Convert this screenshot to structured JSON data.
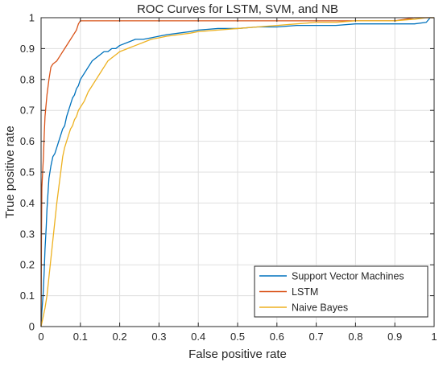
{
  "chart_data": {
    "type": "line",
    "title": "ROC Curves for LSTM, SVM, and NB",
    "xlabel": "False positive rate",
    "ylabel": "True positive rate",
    "xlim": [
      0,
      1
    ],
    "ylim": [
      0,
      1
    ],
    "xticks": [
      0,
      0.1,
      0.2,
      0.3,
      0.4,
      0.5,
      0.6,
      0.7,
      0.8,
      0.9,
      1
    ],
    "yticks": [
      0,
      0.1,
      0.2,
      0.3,
      0.4,
      0.5,
      0.6,
      0.7,
      0.8,
      0.9,
      1
    ],
    "xtick_labels": [
      "0",
      "0.1",
      "0.2",
      "0.3",
      "0.4",
      "0.5",
      "0.6",
      "0.7",
      "0.8",
      "0.9",
      "1"
    ],
    "ytick_labels": [
      "0",
      "0.1",
      "0.2",
      "0.3",
      "0.4",
      "0.5",
      "0.6",
      "0.7",
      "0.8",
      "0.9",
      "1"
    ],
    "grid": true,
    "legend_position": "bottom-right",
    "series": [
      {
        "name": "Support Vector Machines",
        "color": "#0072BD",
        "x": [
          0,
          0.002,
          0.005,
          0.008,
          0.01,
          0.013,
          0.015,
          0.018,
          0.02,
          0.025,
          0.03,
          0.035,
          0.04,
          0.045,
          0.05,
          0.055,
          0.06,
          0.065,
          0.07,
          0.075,
          0.08,
          0.085,
          0.09,
          0.095,
          0.1,
          0.11,
          0.12,
          0.13,
          0.14,
          0.15,
          0.16,
          0.17,
          0.18,
          0.19,
          0.2,
          0.22,
          0.24,
          0.26,
          0.28,
          0.3,
          0.32,
          0.35,
          0.38,
          0.4,
          0.45,
          0.5,
          0.55,
          0.6,
          0.65,
          0.7,
          0.75,
          0.8,
          0.85,
          0.9,
          0.95,
          0.98,
          0.99,
          1
        ],
        "y": [
          0,
          0.05,
          0.1,
          0.18,
          0.25,
          0.32,
          0.38,
          0.44,
          0.48,
          0.52,
          0.55,
          0.56,
          0.58,
          0.6,
          0.62,
          0.64,
          0.65,
          0.68,
          0.7,
          0.72,
          0.74,
          0.75,
          0.77,
          0.78,
          0.8,
          0.82,
          0.84,
          0.86,
          0.87,
          0.88,
          0.89,
          0.89,
          0.9,
          0.9,
          0.91,
          0.92,
          0.93,
          0.93,
          0.935,
          0.94,
          0.945,
          0.95,
          0.955,
          0.96,
          0.965,
          0.965,
          0.97,
          0.97,
          0.975,
          0.975,
          0.975,
          0.98,
          0.98,
          0.98,
          0.98,
          0.985,
          1,
          1
        ]
      },
      {
        "name": "LSTM",
        "color": "#D95319",
        "x": [
          0,
          0.001,
          0.002,
          0.004,
          0.006,
          0.008,
          0.01,
          0.015,
          0.02,
          0.025,
          0.03,
          0.04,
          0.05,
          0.06,
          0.07,
          0.08,
          0.09,
          0.095,
          0.1,
          0.15,
          0.2,
          0.3,
          0.4,
          0.5,
          0.6,
          0.7,
          0.8,
          0.9,
          0.95,
          1
        ],
        "y": [
          0,
          0.3,
          0.45,
          0.5,
          0.55,
          0.62,
          0.68,
          0.75,
          0.8,
          0.84,
          0.85,
          0.86,
          0.88,
          0.9,
          0.92,
          0.94,
          0.96,
          0.98,
          0.99,
          0.99,
          0.99,
          0.99,
          0.99,
          0.99,
          0.99,
          0.99,
          0.99,
          0.99,
          1,
          1
        ]
      },
      {
        "name": "Naive Bayes",
        "color": "#EDB120",
        "x": [
          0,
          0.005,
          0.01,
          0.015,
          0.02,
          0.025,
          0.03,
          0.035,
          0.04,
          0.045,
          0.05,
          0.055,
          0.06,
          0.065,
          0.07,
          0.075,
          0.08,
          0.085,
          0.09,
          0.095,
          0.1,
          0.11,
          0.12,
          0.13,
          0.14,
          0.15,
          0.16,
          0.17,
          0.18,
          0.19,
          0.2,
          0.22,
          0.24,
          0.26,
          0.28,
          0.3,
          0.32,
          0.35,
          0.38,
          0.4,
          0.45,
          0.5,
          0.55,
          0.6,
          0.65,
          0.7,
          0.75,
          0.8,
          0.85,
          0.9,
          0.95,
          0.98,
          1
        ],
        "y": [
          0,
          0.03,
          0.06,
          0.1,
          0.16,
          0.22,
          0.28,
          0.34,
          0.4,
          0.45,
          0.5,
          0.55,
          0.58,
          0.6,
          0.62,
          0.64,
          0.65,
          0.67,
          0.68,
          0.7,
          0.71,
          0.73,
          0.76,
          0.78,
          0.8,
          0.82,
          0.84,
          0.86,
          0.87,
          0.88,
          0.89,
          0.9,
          0.91,
          0.92,
          0.93,
          0.935,
          0.94,
          0.945,
          0.95,
          0.955,
          0.96,
          0.965,
          0.97,
          0.975,
          0.98,
          0.985,
          0.985,
          0.99,
          0.99,
          0.99,
          0.995,
          1,
          1
        ]
      }
    ]
  }
}
